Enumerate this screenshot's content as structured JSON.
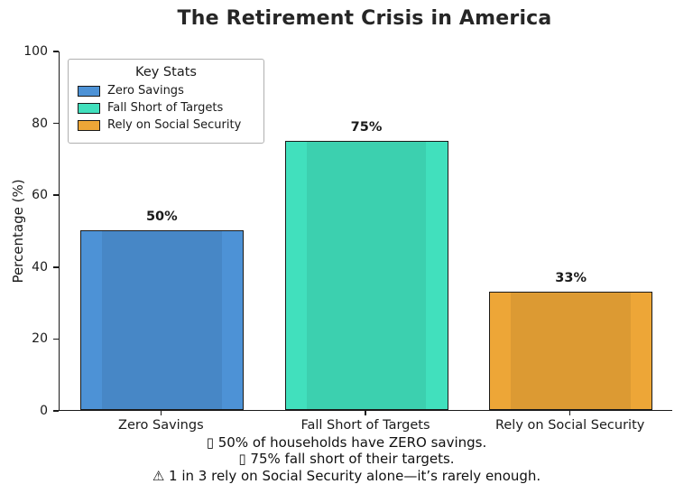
{
  "chart_data": {
    "type": "bar",
    "title": "The Retirement Crisis in America",
    "ylabel": "Percentage (%)",
    "xlabel": "",
    "ylim": [
      0,
      100
    ],
    "yticks": [
      0,
      20,
      40,
      60,
      80,
      100
    ],
    "grid": false,
    "categories": [
      "Zero Savings",
      "Fall Short of Targets",
      "Rely on Social Security"
    ],
    "values": [
      50,
      75,
      33
    ],
    "bar_labels": [
      "50%",
      "75%",
      "33%"
    ],
    "colors": [
      "#4d92d6",
      "#41e0bd",
      "#eda637"
    ],
    "bar_edge_color": "#1a1a1a",
    "legend": {
      "title": "Key Stats",
      "position": "upper-left",
      "entries": [
        {
          "label": "Zero Savings",
          "color": "#4d92d6"
        },
        {
          "label": "Fall Short of Targets",
          "color": "#41e0bd"
        },
        {
          "label": "Rely on Social Security",
          "color": "#eda637"
        }
      ]
    },
    "annotations": [
      "▯ 50% of households have ZERO savings.",
      "▯ 75% fall short of their targets.",
      "⚠ 1 in 3 rely on Social Security alone—it’s rarely enough."
    ]
  }
}
